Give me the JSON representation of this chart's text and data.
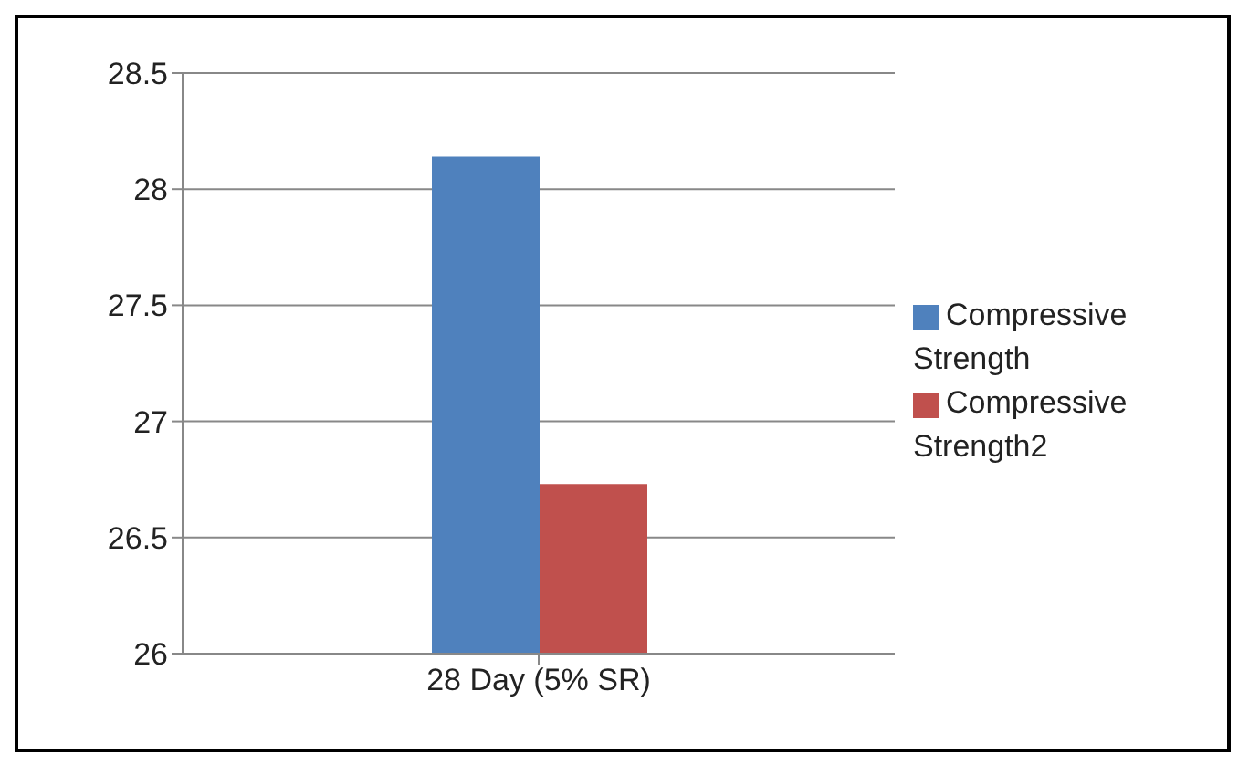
{
  "chart_data": {
    "type": "bar",
    "categories": [
      "28 Day (5% SR)"
    ],
    "series": [
      {
        "name": "Compressive Strength",
        "color": "#4f81bd",
        "values": [
          28.14
        ]
      },
      {
        "name": "Compressive Strength2",
        "color": "#c0504d",
        "values": [
          26.73
        ]
      }
    ],
    "ylim": [
      26,
      28.5
    ],
    "yticks": [
      26,
      26.5,
      27,
      27.5,
      28,
      28.5
    ],
    "grid": "y",
    "legend": "right"
  }
}
